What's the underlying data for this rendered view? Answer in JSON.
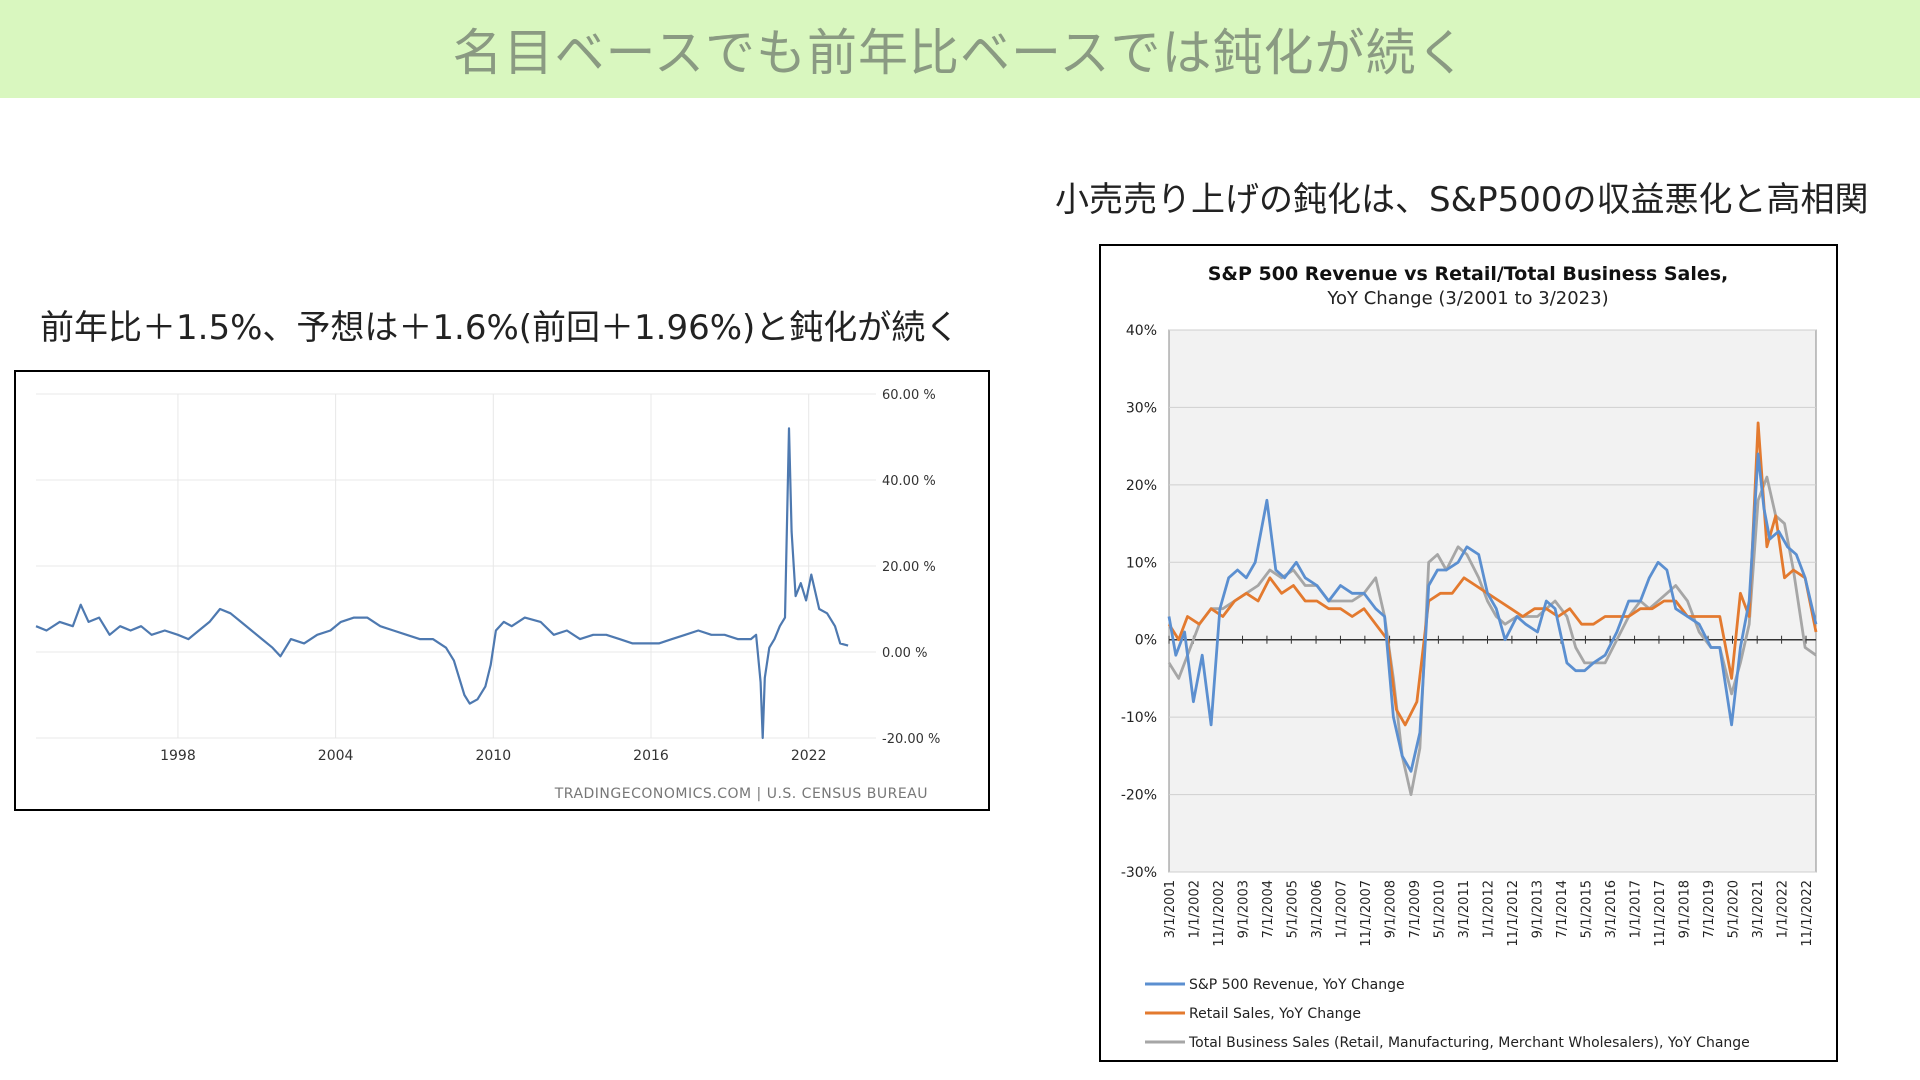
{
  "slide": {
    "title": "名目ベースでも前年比ベースでは鈍化が続く",
    "left_caption": "前年比＋1.5%、予想は＋1.6%(前回＋1.96%)と鈍化が続く",
    "right_caption": "小売売り上げの鈍化は、S&P500の収益悪化と高相関",
    "banner_color": "#d9f7bf"
  },
  "chart_data": [
    {
      "type": "line",
      "title": "",
      "xlabel": "",
      "ylabel": "",
      "x_tick_labels": [
        "1998",
        "2004",
        "2010",
        "2016",
        "2022"
      ],
      "x_tick_values": [
        1998,
        2004,
        2010,
        2016,
        2022
      ],
      "y_tick_labels": [
        "60.00 %",
        "40.00 %",
        "20.00 %",
        "0.00 %",
        "-20.00 %"
      ],
      "y_tick_values": [
        60,
        40,
        20,
        0,
        -20
      ],
      "xlim": [
        1992.6,
        2023.8
      ],
      "ylim": [
        -20,
        60
      ],
      "source": "TRADINGECONOMICS.COM | U.S. CENSUS BUREAU",
      "color": "#4e79b0",
      "grid": true,
      "series": [
        {
          "x": [
            1992.6,
            1993.0,
            1993.5,
            1994.0,
            1994.3,
            1994.6,
            1995.0,
            1995.4,
            1995.8,
            1996.2,
            1996.6,
            1997.0,
            1997.5,
            1998.0,
            1998.4,
            1998.8,
            1999.2,
            1999.6,
            2000.0,
            2000.4,
            2000.8,
            2001.2,
            2001.6,
            2001.9,
            2002.3,
            2002.8,
            2003.3,
            2003.8,
            2004.2,
            2004.7,
            2005.2,
            2005.7,
            2006.2,
            2006.7,
            2007.2,
            2007.7,
            2008.2,
            2008.5,
            2008.9,
            2009.1,
            2009.4,
            2009.7,
            2009.9,
            2010.1,
            2010.4,
            2010.7,
            2011.2,
            2011.8,
            2012.3,
            2012.8,
            2013.3,
            2013.8,
            2014.3,
            2014.8,
            2015.3,
            2015.8,
            2016.3,
            2016.8,
            2017.3,
            2017.8,
            2018.3,
            2018.8,
            2019.3,
            2019.8,
            2020.0,
            2020.17,
            2020.25,
            2020.33,
            2020.5,
            2020.7,
            2020.9,
            2021.1,
            2021.25,
            2021.35,
            2021.5,
            2021.7,
            2021.9,
            2022.1,
            2022.4,
            2022.7,
            2023.0,
            2023.2,
            2023.5
          ],
          "y": [
            6,
            5,
            7,
            6,
            11,
            7,
            8,
            4,
            6,
            5,
            6,
            4,
            5,
            4,
            3,
            5,
            7,
            10,
            9,
            7,
            5,
            3,
            1,
            -1,
            3,
            2,
            4,
            5,
            7,
            8,
            8,
            6,
            5,
            4,
            3,
            3,
            1,
            -2,
            -10,
            -12,
            -11,
            -8,
            -3,
            5,
            7,
            6,
            8,
            7,
            4,
            5,
            3,
            4,
            4,
            3,
            2,
            2,
            2,
            3,
            4,
            5,
            4,
            4,
            3,
            3,
            4,
            -7,
            -20,
            -6,
            1,
            3,
            6,
            8,
            52,
            28,
            13,
            16,
            12,
            18,
            10,
            9,
            6,
            2,
            1.5
          ]
        }
      ]
    },
    {
      "type": "line",
      "title": "S&P 500 Revenue vs Retail/Total Business Sales,",
      "subtitle": "YoY Change (3/2001 to 3/2023)",
      "xlabel": "",
      "ylabel": "",
      "x_tick_labels": [
        "3/1/2001",
        "1/1/2002",
        "11/1/2002",
        "9/1/2003",
        "7/1/2004",
        "5/1/2005",
        "3/1/2006",
        "1/1/2007",
        "11/1/2007",
        "9/1/2008",
        "7/1/2009",
        "5/1/2010",
        "3/1/2011",
        "1/1/2012",
        "11/1/2012",
        "9/1/2013",
        "7/1/2014",
        "5/1/2015",
        "3/1/2016",
        "1/1/2017",
        "11/1/2017",
        "9/1/2018",
        "7/1/2019",
        "5/1/2020",
        "3/1/2021",
        "1/1/2022",
        "11/1/2022"
      ],
      "x_tick_values": [
        2001.17,
        2002.0,
        2002.83,
        2003.67,
        2004.5,
        2005.33,
        2006.17,
        2007.0,
        2007.83,
        2008.67,
        2009.5,
        2010.33,
        2011.17,
        2012.0,
        2012.83,
        2013.67,
        2014.5,
        2015.33,
        2016.17,
        2017.0,
        2017.83,
        2018.67,
        2019.5,
        2020.33,
        2021.17,
        2022.0,
        2022.83
      ],
      "y_tick_labels": [
        "40%",
        "30%",
        "20%",
        "10%",
        "0%",
        "-10%",
        "-20%",
        "-30%"
      ],
      "y_tick_values": [
        40,
        30,
        20,
        10,
        0,
        -10,
        -20,
        -30
      ],
      "xlim": [
        2001.17,
        2023.17
      ],
      "ylim": [
        -30,
        40
      ],
      "legend_position": "bottom",
      "grid": true,
      "series": [
        {
          "name": "S&P 500 Revenue, YoY Change",
          "color": "#5b8fd0",
          "x": [
            2001.17,
            2001.4,
            2001.7,
            2002.0,
            2002.3,
            2002.6,
            2002.9,
            2003.2,
            2003.5,
            2003.8,
            2004.1,
            2004.5,
            2004.8,
            2005.1,
            2005.5,
            2005.8,
            2006.2,
            2006.6,
            2007.0,
            2007.4,
            2007.8,
            2008.2,
            2008.5,
            2008.8,
            2009.1,
            2009.4,
            2009.7,
            2010.0,
            2010.3,
            2010.6,
            2011.0,
            2011.3,
            2011.7,
            2012.0,
            2012.3,
            2012.6,
            2013.0,
            2013.3,
            2013.7,
            2014.0,
            2014.3,
            2014.7,
            2015.0,
            2015.3,
            2015.6,
            2016.0,
            2016.4,
            2016.8,
            2017.2,
            2017.5,
            2017.8,
            2018.1,
            2018.4,
            2018.8,
            2019.2,
            2019.6,
            2019.9,
            2020.3,
            2020.6,
            2020.9,
            2021.2,
            2021.4,
            2021.6,
            2021.9,
            2022.2,
            2022.5,
            2022.8,
            2023.17
          ],
          "y": [
            3,
            -2,
            1,
            -8,
            -2,
            -11,
            4,
            8,
            9,
            8,
            10,
            18,
            9,
            8,
            10,
            8,
            7,
            5,
            7,
            6,
            6,
            4,
            3,
            -10,
            -15,
            -17,
            -12,
            7,
            9,
            9,
            10,
            12,
            11,
            6,
            4,
            0,
            3,
            2,
            1,
            5,
            4,
            -3,
            -4,
            -4,
            -3,
            -2,
            1,
            5,
            5,
            8,
            10,
            9,
            4,
            3,
            2,
            -1,
            -1,
            -11,
            -1,
            5,
            24,
            17,
            13,
            14,
            12,
            11,
            8,
            2
          ]
        },
        {
          "name": "Retail Sales, YoY Change",
          "color": "#e37a2f",
          "x": [
            2001.17,
            2001.5,
            2001.8,
            2002.2,
            2002.6,
            2003.0,
            2003.4,
            2003.8,
            2004.2,
            2004.6,
            2005.0,
            2005.4,
            2005.8,
            2006.2,
            2006.6,
            2007.0,
            2007.4,
            2007.8,
            2008.2,
            2008.6,
            2008.9,
            2009.2,
            2009.6,
            2010.0,
            2010.4,
            2010.8,
            2011.2,
            2011.6,
            2012.0,
            2012.4,
            2012.8,
            2013.2,
            2013.6,
            2014.0,
            2014.4,
            2014.8,
            2015.2,
            2015.6,
            2016.0,
            2016.4,
            2016.8,
            2017.2,
            2017.6,
            2018.0,
            2018.4,
            2018.8,
            2019.2,
            2019.6,
            2019.9,
            2020.3,
            2020.6,
            2020.9,
            2021.2,
            2021.5,
            2021.8,
            2022.1,
            2022.4,
            2022.8,
            2023.17
          ],
          "y": [
            2,
            0,
            3,
            2,
            4,
            3,
            5,
            6,
            5,
            8,
            6,
            7,
            5,
            5,
            4,
            4,
            3,
            4,
            2,
            0,
            -9,
            -11,
            -8,
            5,
            6,
            6,
            8,
            7,
            6,
            5,
            4,
            3,
            4,
            4,
            3,
            4,
            2,
            2,
            3,
            3,
            3,
            4,
            4,
            5,
            5,
            3,
            3,
            3,
            3,
            -5,
            6,
            3,
            28,
            12,
            16,
            8,
            9,
            8,
            1
          ]
        },
        {
          "name": "Total Business Sales (Retail, Manufacturing, Merchant Wholesalers), YoY Change",
          "color": "#a6a6a6",
          "x": [
            2001.17,
            2001.5,
            2001.8,
            2002.2,
            2002.6,
            2003.0,
            2003.4,
            2003.8,
            2004.2,
            2004.6,
            2005.0,
            2005.4,
            2005.8,
            2006.2,
            2006.6,
            2007.0,
            2007.4,
            2007.8,
            2008.2,
            2008.5,
            2008.8,
            2009.1,
            2009.4,
            2009.7,
            2010.0,
            2010.3,
            2010.6,
            2011.0,
            2011.3,
            2011.7,
            2012.0,
            2012.3,
            2012.6,
            2013.0,
            2013.3,
            2013.7,
            2014.0,
            2014.3,
            2014.7,
            2015.0,
            2015.3,
            2015.6,
            2016.0,
            2016.4,
            2016.8,
            2017.2,
            2017.5,
            2017.8,
            2018.1,
            2018.4,
            2018.8,
            2019.2,
            2019.6,
            2019.9,
            2020.3,
            2020.6,
            2020.9,
            2021.2,
            2021.5,
            2021.8,
            2022.1,
            2022.4,
            2022.8,
            2023.17
          ],
          "y": [
            -3,
            -5,
            -2,
            2,
            4,
            4,
            5,
            6,
            7,
            9,
            8,
            9,
            7,
            7,
            5,
            5,
            5,
            6,
            8,
            3,
            -5,
            -15,
            -20,
            -14,
            10,
            11,
            9,
            12,
            11,
            8,
            5,
            3,
            2,
            3,
            3,
            3,
            4,
            5,
            3,
            -1,
            -3,
            -3,
            -3,
            0,
            3,
            5,
            4,
            5,
            6,
            7,
            5,
            1,
            -1,
            -1,
            -7,
            -3,
            2,
            18,
            21,
            16,
            15,
            9,
            -1,
            -2
          ]
        }
      ]
    }
  ]
}
